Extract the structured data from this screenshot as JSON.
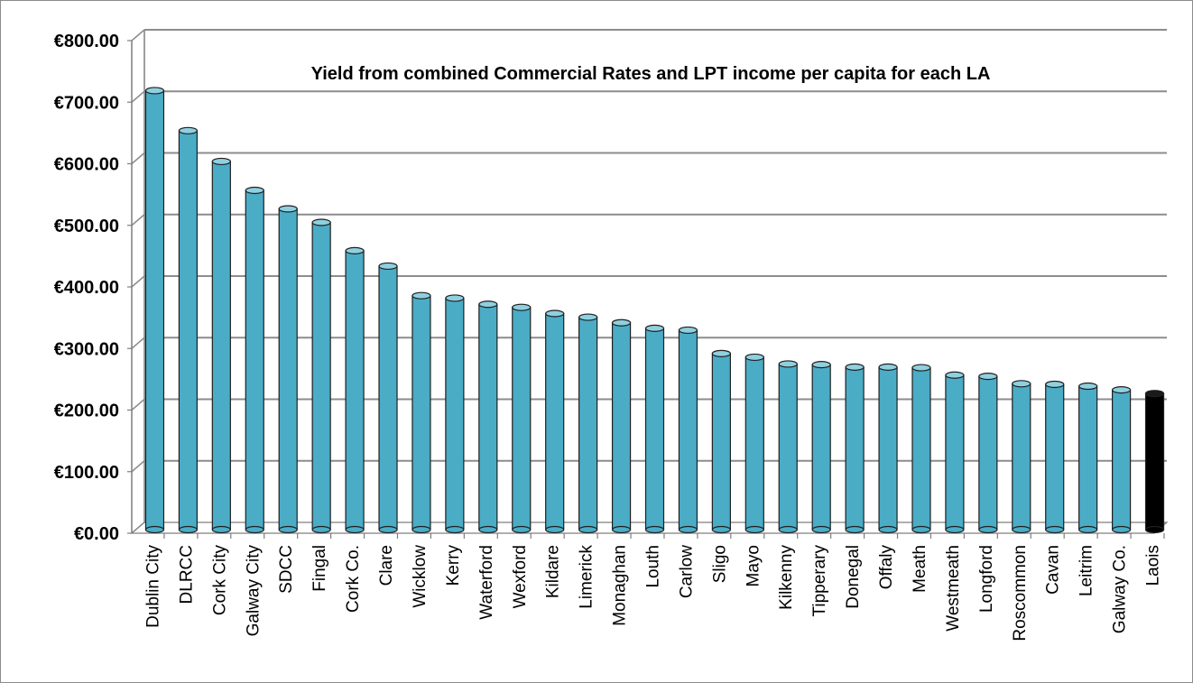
{
  "chart_data": {
    "type": "bar",
    "title": "Yield from combined Commercial Rates and LPT income per capita for each LA",
    "xlabel": "",
    "ylabel": "",
    "ylim": [
      0,
      800
    ],
    "y_ticks": [
      "€0.00",
      "€100.00",
      "€200.00",
      "€300.00",
      "€400.00",
      "€500.00",
      "€600.00",
      "€700.00",
      "€800.00"
    ],
    "grid": true,
    "legend": "none",
    "categories": [
      "Dublin City",
      "DLRCC",
      "Cork City",
      "Galway City",
      "SDCC",
      "Fingal",
      "Cork Co.",
      "Clare",
      "Wicklow",
      "Kerry",
      "Waterford",
      "Wexford",
      "Kildare",
      "Limerick",
      "Monaghan",
      "Louth",
      "Carlow",
      "Sligo",
      "Mayo",
      "Kilkenny",
      "Tipperary",
      "Donegal",
      "Offaly",
      "Meath",
      "Westmeath",
      "Longford",
      "Roscommon",
      "Cavan",
      "Leitrim",
      "Galway Co.",
      "Laois"
    ],
    "values": [
      710,
      645,
      595,
      548,
      518,
      496,
      450,
      425,
      377,
      373,
      363,
      358,
      348,
      342,
      333,
      324,
      321,
      283,
      277,
      266,
      265,
      261,
      261,
      260,
      248,
      246,
      234,
      233,
      230,
      224,
      218
    ],
    "colors": {
      "bar": "#4BACC6",
      "bar_top": "#8FD0E0",
      "highlight": "#000000",
      "highlight_category": "Laois",
      "grid": "#8c8c8c",
      "wall": "#7f7f7f"
    }
  }
}
